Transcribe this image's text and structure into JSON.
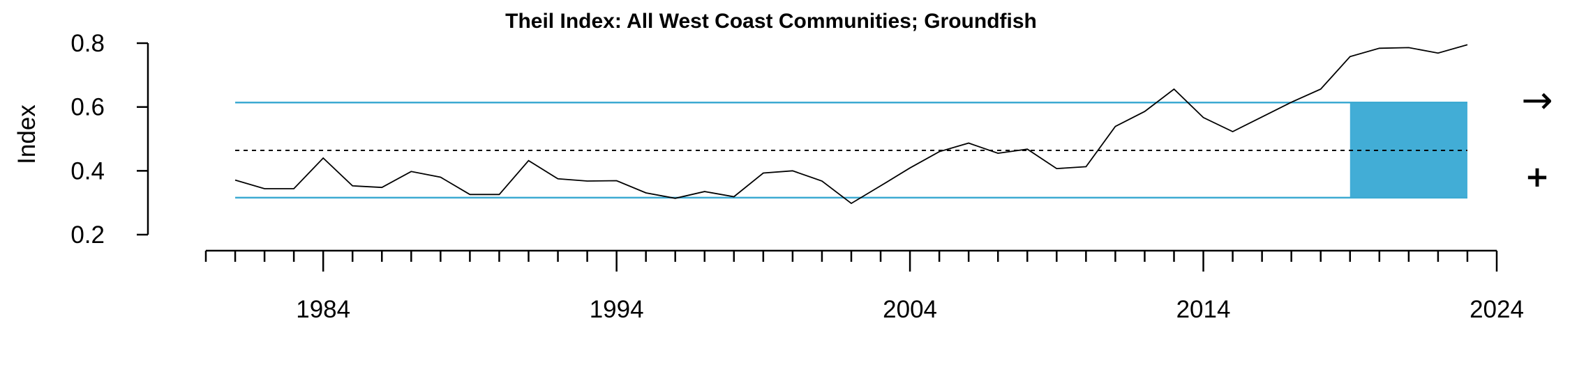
{
  "chart_data": {
    "type": "line",
    "title": "Theil Index: All West Coast Communities; Groundfish",
    "ylabel": "Index",
    "xlabel": "",
    "xlim": [
      1980,
      2024
    ],
    "ylim": [
      0.2,
      0.8
    ],
    "x_ticks_major": [
      1984,
      1994,
      2004,
      2014,
      2024
    ],
    "x_tick_labels": [
      "1984",
      "1994",
      "2004",
      "2014",
      "2024"
    ],
    "y_ticks": [
      0.2,
      0.4,
      0.6,
      0.8
    ],
    "y_tick_labels": [
      "0.2",
      "0.4",
      "0.6",
      "0.8"
    ],
    "grid": false,
    "x": [
      1981,
      1982,
      1983,
      1984,
      1985,
      1986,
      1987,
      1988,
      1989,
      1990,
      1991,
      1992,
      1993,
      1994,
      1995,
      1996,
      1997,
      1998,
      1999,
      2000,
      2001,
      2002,
      2003,
      2004,
      2005,
      2006,
      2007,
      2008,
      2009,
      2010,
      2011,
      2012,
      2013,
      2014,
      2015,
      2016,
      2017,
      2018,
      2019,
      2020,
      2021,
      2022,
      2023
    ],
    "series": [
      {
        "values": [
          0.371,
          0.344,
          0.344,
          0.44,
          0.353,
          0.348,
          0.398,
          0.38,
          0.326,
          0.326,
          0.432,
          0.375,
          0.368,
          0.369,
          0.331,
          0.314,
          0.335,
          0.319,
          0.393,
          0.4,
          0.368,
          0.298,
          0.353,
          0.409,
          0.46,
          0.487,
          0.455,
          0.468,
          0.407,
          0.413,
          0.539,
          0.586,
          0.656,
          0.567,
          0.523,
          0.569,
          0.615,
          0.656,
          0.758,
          0.784,
          0.786,
          0.769,
          0.795
        ],
        "color": "#000000"
      }
    ],
    "reference_lines": {
      "mean": 0.464,
      "upper_sd": 0.614,
      "lower_sd": 0.316,
      "sd_line_color": "#3caad2",
      "mean_line_style": "dotted"
    },
    "highlight": {
      "x_start": 2019,
      "x_end": 2023,
      "y_start": 0.316,
      "y_end": 0.614,
      "color": "#42add6"
    },
    "indicators": {
      "trend": "→",
      "mean": "+"
    }
  }
}
